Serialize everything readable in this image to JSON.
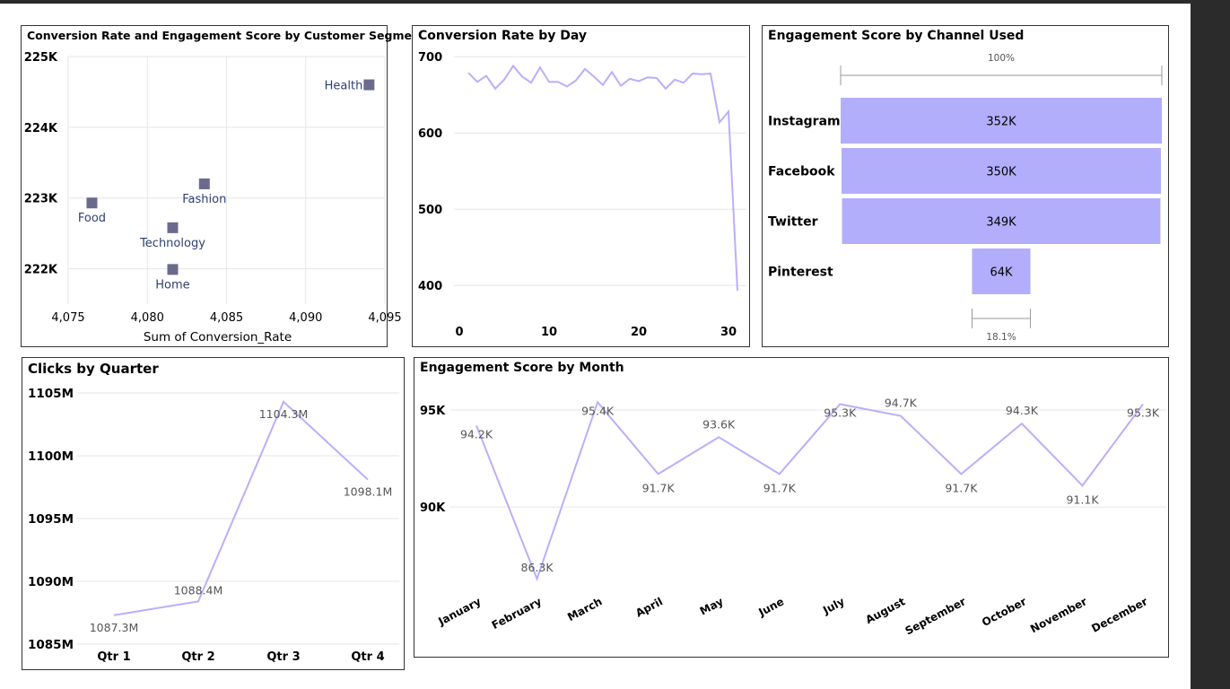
{
  "chart_data": [
    {
      "id": "scatter",
      "type": "scatter",
      "title": "Conversion Rate and Engagement Score by Customer Segment",
      "xlabel": "Sum of Conversion_Rate",
      "ylabel": "",
      "xlim": [
        4075,
        4095
      ],
      "ylim": [
        221500,
        225000
      ],
      "xticks": [
        "4,075",
        "4,080",
        "4,085",
        "4,090",
        "4,095"
      ],
      "yticks": [
        "225K",
        "224K",
        "223K",
        "222K"
      ],
      "points": [
        {
          "label": "Health",
          "x": 4094,
          "y": 224600
        },
        {
          "label": "Fashion",
          "x": 4083.6,
          "y": 223200
        },
        {
          "label": "Food",
          "x": 4076.5,
          "y": 222930
        },
        {
          "label": "Technology",
          "x": 4081.6,
          "y": 222580
        },
        {
          "label": "Home",
          "x": 4081.6,
          "y": 221990
        }
      ],
      "marker_color": "#6b6a8c",
      "label_color": "#2e3f73"
    },
    {
      "id": "daily",
      "type": "line",
      "title": "Conversion Rate by Day",
      "xlabel": "",
      "ylabel": "",
      "xlim": [
        0,
        32
      ],
      "ylim": [
        352,
        705
      ],
      "xticks": [
        "0",
        "10",
        "20",
        "30"
      ],
      "yticks": [
        "700",
        "600",
        "500",
        "400"
      ],
      "x": [
        1,
        2,
        3,
        4,
        5,
        6,
        7,
        8,
        9,
        10,
        11,
        12,
        13,
        14,
        15,
        16,
        17,
        18,
        19,
        20,
        21,
        22,
        23,
        24,
        25,
        26,
        27,
        28,
        29,
        30,
        31
      ],
      "values": [
        679,
        667,
        675,
        658,
        670,
        688,
        674,
        666,
        686,
        667,
        667,
        661,
        669,
        684,
        674,
        663,
        680,
        662,
        671,
        668,
        673,
        672,
        658,
        670,
        666,
        678,
        677,
        678,
        614,
        628,
        393
      ],
      "line_color": "#b7b0fb"
    },
    {
      "id": "channel",
      "type": "bar",
      "title": "Engagement Score by Channel Used",
      "categories": [
        "Instagram",
        "Facebook",
        "Twitter",
        "Pinterest"
      ],
      "values": [
        352,
        350,
        349,
        64
      ],
      "value_labels": [
        "352K",
        "350K",
        "349K",
        "64K"
      ],
      "top_pct_label": "100%",
      "bottom_pct_label": "18.1%",
      "bar_color": "#b3aefc"
    },
    {
      "id": "quarter",
      "type": "line",
      "title": "Clicks by Quarter",
      "xlabel": "",
      "ylabel": "",
      "categories": [
        "Qtr 1",
        "Qtr 2",
        "Qtr 3",
        "Qtr 4"
      ],
      "values": [
        1087.3,
        1088.4,
        1104.3,
        1098.1
      ],
      "value_labels": [
        "1087.3M",
        "1088.4M",
        "1104.3M",
        "1098.1M"
      ],
      "ylim": [
        1085,
        1105
      ],
      "yticks": [
        "1105M",
        "1100M",
        "1095M",
        "1090M",
        "1085M"
      ],
      "line_color": "#b7b0fb"
    },
    {
      "id": "month",
      "type": "line",
      "title": "Engagement Score by Month",
      "xlabel": "",
      "ylabel": "",
      "categories": [
        "January",
        "February",
        "March",
        "April",
        "May",
        "June",
        "July",
        "August",
        "September",
        "October",
        "November",
        "December"
      ],
      "values": [
        94.2,
        86.3,
        95.4,
        91.7,
        93.6,
        91.7,
        95.3,
        94.7,
        91.7,
        94.3,
        91.1,
        95.3
      ],
      "value_labels": [
        "94.2K",
        "86.3K",
        "95.4K",
        "91.7K",
        "93.6K",
        "91.7K",
        "95.3K",
        "94.7K",
        "91.7K",
        "94.3K",
        "91.1K",
        "95.3K"
      ],
      "ylim": [
        85.2,
        95
      ],
      "yticks": [
        "95K",
        "90K"
      ],
      "line_color": "#b7b0fb"
    }
  ]
}
